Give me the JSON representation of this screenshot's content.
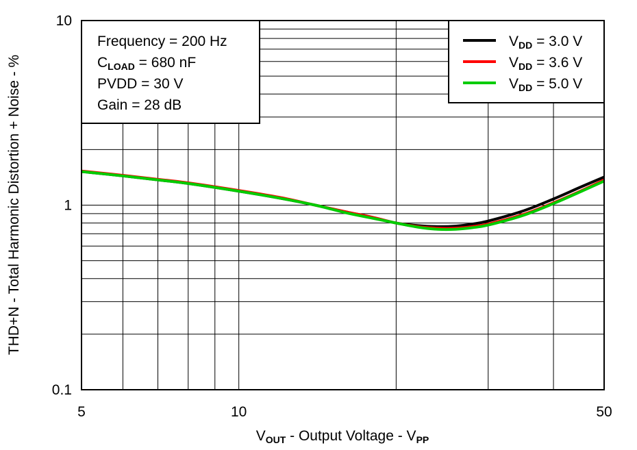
{
  "chart_data": {
    "type": "line",
    "x_scale": "log",
    "y_scale": "log",
    "xlim": [
      5,
      50
    ],
    "ylim": [
      0.1,
      10
    ],
    "x_ticks": [
      5,
      10,
      50
    ],
    "x_tick_labels": [
      "5",
      "10",
      "50"
    ],
    "y_ticks": [
      0.1,
      1,
      10
    ],
    "y_tick_labels": [
      "0.1",
      "1",
      "10"
    ],
    "grid": true,
    "xlabel": {
      "main": "V",
      "sub": "OUT",
      "rest": " - Output Voltage - V",
      "sub2": "PP"
    },
    "ylabel": "THD+N - Total Harmonic Distortion + Noise - %",
    "legend_position": "top-right",
    "conditions": {
      "line1": "Frequency = 200 Hz",
      "line2_main": "C",
      "line2_sub": "LOAD",
      "line2_rest": " = 680 nF",
      "line3": "PVDD = 30 V",
      "line4": "Gain = 28 dB"
    },
    "series": [
      {
        "name": "VDD = 3.0 V",
        "label_main": "V",
        "label_sub": "DD",
        "label_rest": " = 3.0 V",
        "color": "#000000",
        "x": [
          5,
          6,
          7,
          8,
          10,
          12,
          14,
          16,
          18,
          20,
          22,
          24,
          26,
          28,
          30,
          35,
          40,
          45,
          50
        ],
        "y": [
          1.52,
          1.44,
          1.37,
          1.31,
          1.19,
          1.09,
          1.0,
          0.92,
          0.86,
          0.8,
          0.775,
          0.765,
          0.77,
          0.79,
          0.82,
          0.93,
          1.08,
          1.25,
          1.42
        ]
      },
      {
        "name": "VDD = 3.6 V",
        "label_main": "V",
        "label_sub": "DD",
        "label_rest": " = 3.6 V",
        "color": "#ff0000",
        "x": [
          5,
          6,
          7,
          8,
          10,
          12,
          14,
          16,
          18,
          20,
          22,
          24,
          26,
          28,
          30,
          35,
          40,
          45,
          50
        ],
        "y": [
          1.53,
          1.45,
          1.38,
          1.32,
          1.2,
          1.1,
          1.0,
          0.92,
          0.86,
          0.8,
          0.765,
          0.75,
          0.75,
          0.765,
          0.79,
          0.89,
          1.03,
          1.19,
          1.37
        ]
      },
      {
        "name": "VDD = 5.0 V",
        "label_main": "V",
        "label_sub": "DD",
        "label_rest": " = 5.0 V",
        "color": "#00cc00",
        "x": [
          5,
          6,
          7,
          8,
          10,
          12,
          14,
          16,
          18,
          20,
          22,
          24,
          26,
          28,
          30,
          35,
          40,
          45,
          50
        ],
        "y": [
          1.52,
          1.44,
          1.37,
          1.31,
          1.19,
          1.09,
          1.0,
          0.91,
          0.85,
          0.8,
          0.76,
          0.74,
          0.74,
          0.755,
          0.78,
          0.88,
          1.02,
          1.18,
          1.35
        ]
      }
    ]
  }
}
